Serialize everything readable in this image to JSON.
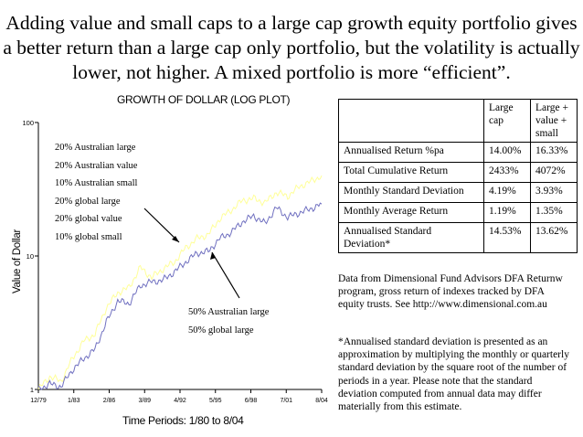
{
  "headline": "Adding value and small caps to a large cap growth equity portfolio gives a better return than a large cap only portfolio, but the volatility is actually lower, not higher.  A mixed portfolio is more “efficient”.",
  "chart_data": {
    "type": "line",
    "title": "GROWTH OF DOLLAR (LOG PLOT)",
    "xlabel": "Time Periods:  1/80 to  8/04",
    "ylabel": "Value of Dollar",
    "yscale": "log",
    "ylim": [
      1,
      100
    ],
    "yticks": [
      "1",
      "10",
      "100"
    ],
    "xticks": [
      "12/79",
      "1/83",
      "2/86",
      "3/89",
      "4/92",
      "5/95",
      "6/98",
      "7/01",
      "8/04"
    ],
    "x": [
      "12/79",
      "1/81",
      "1/82",
      "1/83",
      "1/84",
      "1/85",
      "2/86",
      "1/87",
      "1/88",
      "3/89",
      "1/90",
      "1/91",
      "4/92",
      "1/93",
      "1/94",
      "5/95",
      "1/96",
      "1/97",
      "6/98",
      "1/99",
      "1/00",
      "7/01",
      "1/02",
      "1/03",
      "1/04",
      "8/04"
    ],
    "series": [
      {
        "name": "",
        "color": "#ffff99",
        "values": [
          1.0,
          1.25,
          1.15,
          1.7,
          2.3,
          2.6,
          4.1,
          5.3,
          5.8,
          8.2,
          6.9,
          8.0,
          9.0,
          11.5,
          13.5,
          14.5,
          19.0,
          22.0,
          26.0,
          27.0,
          25.0,
          30.0,
          28.0,
          33.0,
          36.0,
          40.0
        ]
      },
      {
        "name": "",
        "color": "#7070c0",
        "values": [
          1.0,
          1.1,
          1.05,
          1.4,
          1.7,
          2.0,
          3.2,
          4.6,
          4.4,
          6.0,
          6.4,
          6.6,
          7.6,
          9.0,
          10.5,
          10.8,
          13.5,
          15.0,
          18.0,
          20.0,
          17.5,
          23.0,
          19.5,
          21.0,
          22.5,
          24.5
        ]
      }
    ]
  },
  "legend_top": [
    "20% Australian large",
    "20% Australian value",
    "10% Australian small",
    "20% global large",
    "20% global value",
    "10% global small"
  ],
  "legend_bottom": [
    "50% Australian large",
    "50% global large"
  ],
  "table": {
    "header": [
      "",
      "Large cap",
      "Large + value + small"
    ],
    "rows": [
      [
        "Annualised Return %pa",
        "14.00%",
        "16.33%"
      ],
      [
        "Total Cumulative Return",
        "2433%",
        "4072%"
      ],
      [
        "Monthly Standard Deviation",
        "4.19%",
        "3.93%"
      ],
      [
        "Monthly Average Return",
        "1.19%",
        "1.35%"
      ],
      [
        "Annualised Standard Deviation*",
        "14.53%",
        "13.62%"
      ]
    ]
  },
  "note_source": "Data from Dimensional Fund Advisors DFA Returnw program, gross return of indexes tracked by DFA equity trusts.  See http://www.dimensional.com.au",
  "note_sd": "*Annualised standard deviation is presented as an approximation by multiplying the monthly or quarterly standard deviation by the square root of the number of periods in a year.  Please note that the standard deviation computed from annual data may differ materially from this estimate."
}
